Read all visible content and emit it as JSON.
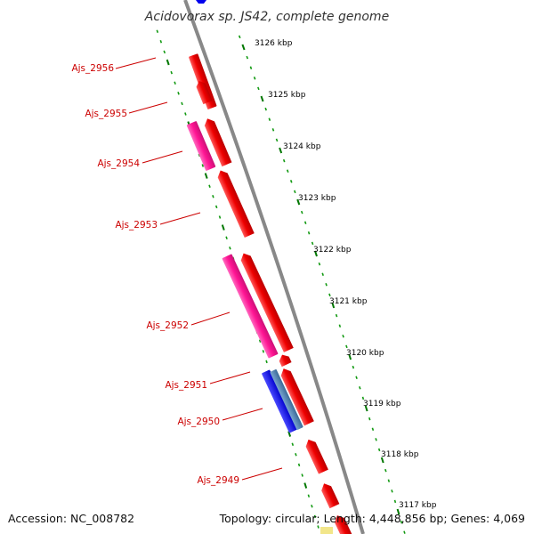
{
  "title": "Acidovorax sp. JS42, complete genome",
  "footer": {
    "accession": "Accession: NC_008782",
    "summary": "Topology: circular; Length: 4,448,856 bp; Genes: 4,069"
  },
  "kbp_labels": [
    "3126 kbp",
    "3125 kbp",
    "3124 kbp",
    "3123 kbp",
    "3122 kbp",
    "3121 kbp",
    "3120 kbp",
    "3119 kbp",
    "3118 kbp",
    "3117 kbp"
  ],
  "gene_labels": [
    "Ajs_2956",
    "Ajs_2955",
    "Ajs_2954",
    "Ajs_2953",
    "Ajs_2952",
    "Ajs_2951",
    "Ajs_2950",
    "Ajs_2949"
  ],
  "colors": {
    "gene_label": "#cc0000",
    "cds": "#ff0000",
    "gene": "#ff1493",
    "blue_feature": "#0000ee",
    "steelblue_feature": "#4682b4",
    "backbone": "#888888",
    "ticks": "#008800"
  }
}
